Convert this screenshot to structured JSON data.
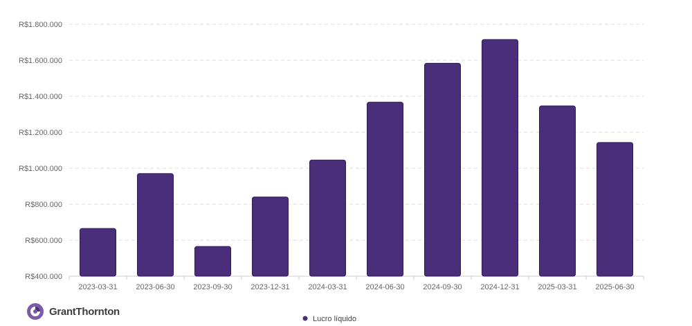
{
  "brand": {
    "name": "GrantThornton",
    "logo_color": "#7b5aa6"
  },
  "chart_data": {
    "type": "bar",
    "title": "",
    "xlabel": "",
    "ylabel": "",
    "categories": [
      "2023-03-31",
      "2023-06-30",
      "2023-09-30",
      "2023-12-31",
      "2024-03-31",
      "2024-06-30",
      "2024-09-30",
      "2024-12-31",
      "2025-03-31",
      "2025-06-30"
    ],
    "series": [
      {
        "name": "Lucro líquido",
        "color": "#4a2e7a",
        "values": [
          665000,
          970000,
          565000,
          840000,
          1045000,
          1367000,
          1583000,
          1715000,
          1346000,
          1143000
        ]
      }
    ],
    "ylim": [
      400000,
      1800000
    ],
    "yticks": [
      400000,
      600000,
      800000,
      1000000,
      1200000,
      1400000,
      1600000,
      1800000
    ],
    "ytick_labels": [
      "R$400.000",
      "R$600.000",
      "R$800.000",
      "R$1.000.000",
      "R$1.200.000",
      "R$1.400.000",
      "R$1.600.000",
      "R$1.800.000"
    ],
    "grid": true,
    "legend": "bottom-center"
  }
}
